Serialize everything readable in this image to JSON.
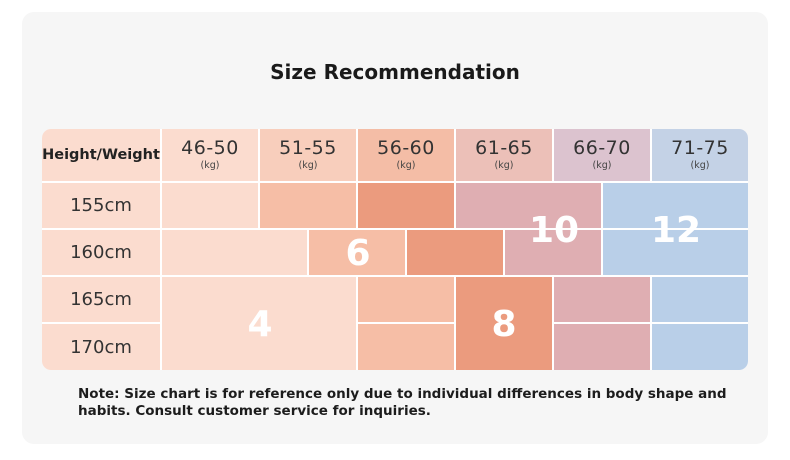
{
  "title": "Size Recommendation",
  "corner_label": "Height/Weight",
  "columns": [
    {
      "range": "46-50",
      "unit": "(kg)"
    },
    {
      "range": "51-55",
      "unit": "(kg)"
    },
    {
      "range": "56-60",
      "unit": "(kg)"
    },
    {
      "range": "61-65",
      "unit": "(kg)"
    },
    {
      "range": "66-70",
      "unit": "(kg)"
    },
    {
      "range": "71-75",
      "unit": "(kg)"
    }
  ],
  "rows": [
    "155cm",
    "160cm",
    "165cm",
    "170cm"
  ],
  "sizes": {
    "size4": "4",
    "size6": "6",
    "size8": "8",
    "size10": "10",
    "size12": "12"
  },
  "colors": {
    "light_peach": "#fbdccf",
    "peach": "#f6bea6",
    "orange": "#eb9b7e",
    "pink": "#dfaeb2",
    "blue": "#b9cfe8"
  },
  "note": "Note: Size chart is for reference only due to individual differences in body shape and habits. Consult customer service for inquiries."
}
